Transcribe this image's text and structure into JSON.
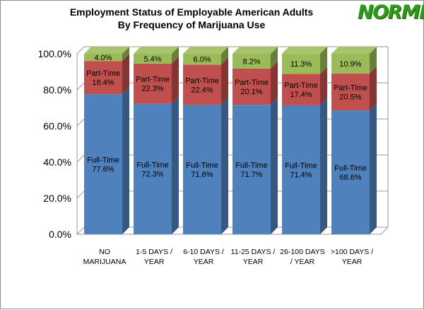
{
  "chart_data": {
    "type": "bar",
    "stacked": true,
    "three_d": true,
    "title": [
      "Employment Status of Employable American Adults",
      "By Frequency of Marijuana Use"
    ],
    "logo_text": "NORML",
    "xlabel": "",
    "ylabel": "",
    "ylim": [
      0,
      100
    ],
    "ytick_labels": [
      "0.0%",
      "20.0%",
      "40.0%",
      "60.0%",
      "80.0%",
      "100.0%"
    ],
    "ytick_values": [
      0,
      20,
      40,
      60,
      80,
      100
    ],
    "grid": true,
    "legend": "none",
    "categories": [
      [
        "NO",
        "MARIJUANA"
      ],
      [
        "1-5 DAYS /",
        "YEAR"
      ],
      [
        "6-10 DAYS /",
        "YEAR"
      ],
      [
        "11-25 DAYS /",
        "YEAR"
      ],
      [
        "26-100 DAYS",
        "/ YEAR"
      ],
      [
        ">100 DAYS /",
        "YEAR"
      ]
    ],
    "series": [
      {
        "name": "Full-Time",
        "color": "#4f81bd",
        "values": [
          77.6,
          72.3,
          71.6,
          71.7,
          71.4,
          68.6
        ],
        "labels": [
          [
            "Full-Time",
            "77.6%"
          ],
          [
            "Full-Time",
            "72.3%"
          ],
          [
            "Full-Time",
            "71.6%"
          ],
          [
            "Full-Time",
            "71.7%"
          ],
          [
            "Full-Time",
            "71.4%"
          ],
          [
            "Full-Time",
            "68.6%"
          ]
        ]
      },
      {
        "name": "Part-Time",
        "color": "#c0504d",
        "values": [
          18.4,
          22.3,
          22.4,
          20.1,
          17.4,
          20.5
        ],
        "labels": [
          [
            "Part-Time",
            "18.4%"
          ],
          [
            "Part-Time",
            "22.3%"
          ],
          [
            "Part-Time",
            "22.4%"
          ],
          [
            "Part-Time",
            "20.1%"
          ],
          [
            "Part-Time",
            "17.4%"
          ],
          [
            "Part-Time",
            "20.5%"
          ]
        ]
      },
      {
        "color": "#9bbb59",
        "values": [
          4.0,
          5.4,
          6.0,
          8.2,
          11.3,
          10.9
        ],
        "labels": [
          [
            "4.0%"
          ],
          [
            "5.4%"
          ],
          [
            "6.0%"
          ],
          [
            "8.2%"
          ],
          [
            "11.3%"
          ],
          [
            "10.9%"
          ]
        ]
      }
    ]
  }
}
